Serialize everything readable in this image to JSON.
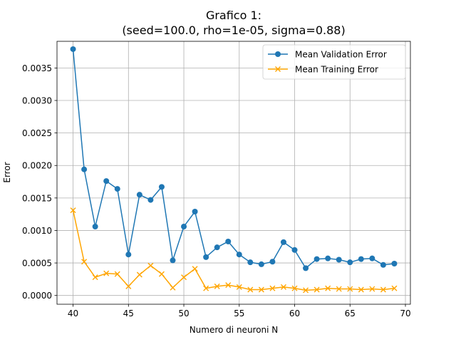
{
  "chart_data": {
    "type": "line",
    "title": "Grafico 1:",
    "subtitle": "(seed=100.0, rho=1e-05, sigma=0.88)",
    "xlabel": "Numero di neuroni N",
    "ylabel": "Error",
    "xlim": [
      38.55,
      70.45
    ],
    "ylim": [
      -0.000135,
      0.00391
    ],
    "xticks": [
      40,
      45,
      50,
      55,
      60,
      65,
      70
    ],
    "xtick_labels": [
      "40",
      "45",
      "50",
      "55",
      "60",
      "65",
      "70"
    ],
    "yticks": [
      0.0,
      0.0005,
      0.001,
      0.0015,
      0.002,
      0.0025,
      0.003,
      0.0035
    ],
    "ytick_labels": [
      "0.0000",
      "0.0005",
      "0.0010",
      "0.0015",
      "0.0020",
      "0.0025",
      "0.0030",
      "0.0035"
    ],
    "grid": true,
    "legend_position": "upper right",
    "x": [
      40,
      41,
      42,
      43,
      44,
      45,
      46,
      47,
      48,
      49,
      50,
      51,
      52,
      53,
      54,
      55,
      56,
      57,
      58,
      59,
      60,
      61,
      62,
      63,
      64,
      65,
      66,
      67,
      68,
      69
    ],
    "series": [
      {
        "name": "Mean Validation Error",
        "color": "#1f77b4",
        "marker": "circle",
        "values": [
          0.00379,
          0.00194,
          0.00106,
          0.00176,
          0.00164,
          0.00063,
          0.00155,
          0.00147,
          0.00167,
          0.00054,
          0.00106,
          0.00129,
          0.00059,
          0.00074,
          0.00083,
          0.00063,
          0.00051,
          0.00048,
          0.00052,
          0.00082,
          0.0007,
          0.00042,
          0.00056,
          0.00057,
          0.00055,
          0.00051,
          0.00056,
          0.00057,
          0.00047,
          0.00049
        ]
      },
      {
        "name": "Mean Training Error",
        "color": "#ffa500",
        "marker": "x",
        "values": [
          0.00131,
          0.00052,
          0.00028,
          0.00034,
          0.00033,
          0.00014,
          0.00032,
          0.00046,
          0.00033,
          0.00012,
          0.00028,
          0.00041,
          0.00011,
          0.00014,
          0.00016,
          0.00013,
          9e-05,
          9e-05,
          0.00011,
          0.00013,
          0.00011,
          8e-05,
          9e-05,
          0.00011,
          0.0001,
          0.0001,
          9e-05,
          0.0001,
          9e-05,
          0.00011
        ]
      }
    ]
  }
}
